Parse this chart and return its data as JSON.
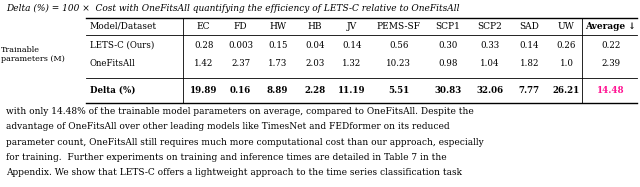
{
  "col_headers": [
    "Model/Dataset",
    "EC",
    "FD",
    "HW",
    "HB",
    "JV",
    "PEMS-SF",
    "SCP1",
    "SCP2",
    "SAD",
    "UW",
    "Average ↓"
  ],
  "row_header_group": "Trainable\nparameters (M)",
  "rows": [
    [
      "LETS-C (Ours)",
      "0.28",
      "0.003",
      "0.15",
      "0.04",
      "0.14",
      "0.56",
      "0.30",
      "0.33",
      "0.14",
      "0.26",
      "0.22"
    ],
    [
      "OneFitsAll",
      "1.42",
      "2.37",
      "1.73",
      "2.03",
      "1.32",
      "10.23",
      "0.98",
      "1.04",
      "1.82",
      "1.0",
      "2.39"
    ],
    [
      "Delta (%)",
      "19.89",
      "0.16",
      "8.89",
      "2.28",
      "11.19",
      "5.51",
      "30.83",
      "32.06",
      "7.77",
      "26.21",
      "14.48"
    ]
  ],
  "delta_avg_color": "#ff1493",
  "header_title": "Delta (%) = 100 ×",
  "header_frac": "Cost with OneFitsAll",
  "header_bold": " quantifying the efficiency of LETS-C relative to OneFitsAll",
  "para_lines": [
    "with only 14.48% of the trainable model parameters on average, compared to OneFitsAll. Despite the",
    "advantage of OneFitsAll over other leading models like TimesNet and FEDformer on its reduced",
    "parameter count, OneFitsAll still requires much more computational cost than our approach, especially",
    "for training.  Further experiments on training and inference times are detailed in Table 7 in the",
    "Appendix. We show that LETS-C offers a lightweight approach to the time series classification task"
  ],
  "background": "#ffffff",
  "fs_header_title": 6.5,
  "fs_col_header": 6.5,
  "fs_data": 6.2,
  "fs_para": 6.5,
  "fs_rowgroup": 5.8
}
